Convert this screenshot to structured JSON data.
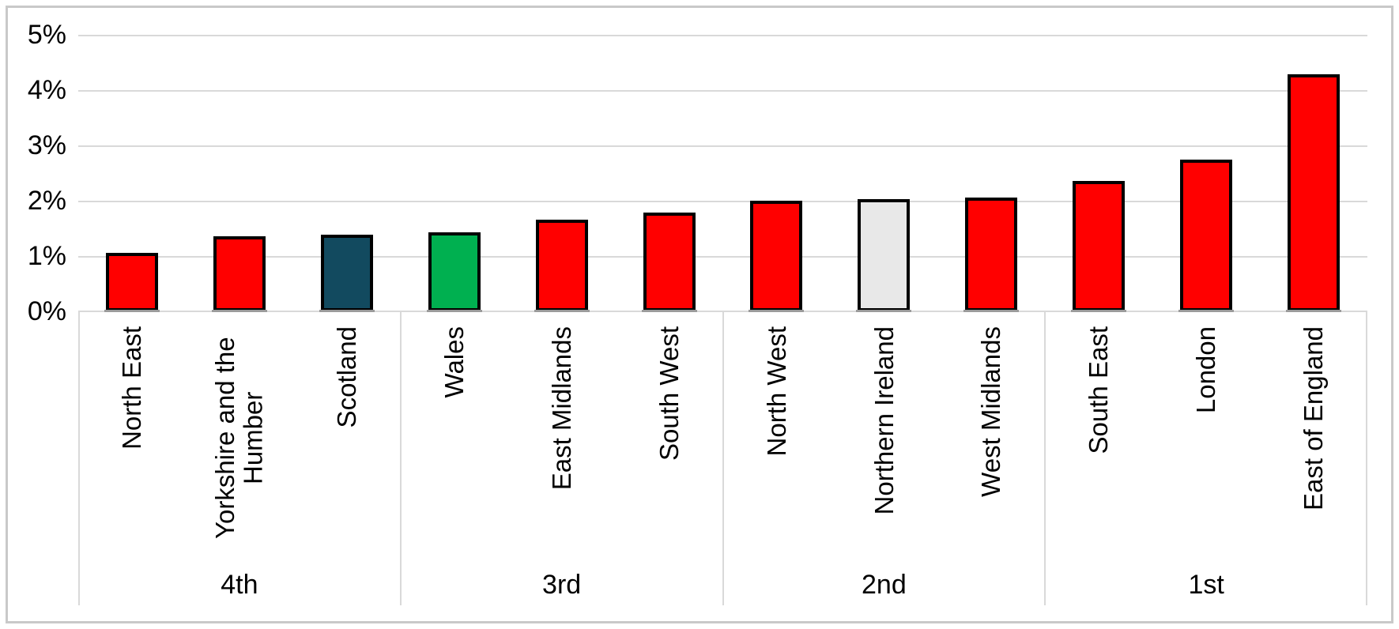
{
  "chart_data": {
    "type": "bar",
    "title": "",
    "xlabel": "",
    "ylabel": "",
    "ylim": [
      0,
      5
    ],
    "ytick_labels": [
      "5%",
      "4%",
      "3%",
      "2%",
      "1%",
      "0%"
    ],
    "grid": true,
    "legend": false,
    "x_axis_levels": [
      "region",
      "quartile"
    ],
    "groups": [
      {
        "label": "4th",
        "bars": [
          {
            "region": "North East",
            "value_pct": 1.05,
            "color": "#FF0000"
          },
          {
            "region": "Yorkshire and the Humber",
            "value_pct": 1.36,
            "color": "#FF0000"
          },
          {
            "region": "Scotland",
            "value_pct": 1.38,
            "color": "#124A5F"
          }
        ]
      },
      {
        "label": "3rd",
        "bars": [
          {
            "region": "Wales",
            "value_pct": 1.43,
            "color": "#00B050"
          },
          {
            "region": "East Midlands",
            "value_pct": 1.65,
            "color": "#FF0000"
          },
          {
            "region": "South West",
            "value_pct": 1.79,
            "color": "#FF0000"
          }
        ]
      },
      {
        "label": "2nd",
        "bars": [
          {
            "region": "North West",
            "value_pct": 2.0,
            "color": "#FF0000"
          },
          {
            "region": "Northern Ireland",
            "value_pct": 2.03,
            "color": "#E8E8E8"
          },
          {
            "region": "West Midlands",
            "value_pct": 2.05,
            "color": "#FF0000"
          }
        ]
      },
      {
        "label": "1st",
        "bars": [
          {
            "region": "South East",
            "value_pct": 2.36,
            "color": "#FF0000"
          },
          {
            "region": "London",
            "value_pct": 2.74,
            "color": "#FF0000"
          },
          {
            "region": "East of England",
            "value_pct": 4.29,
            "color": "#FF0000"
          }
        ]
      }
    ],
    "colors": {
      "default_bar": "#FF0000",
      "scotland_bar": "#124A5F",
      "wales_bar": "#00B050",
      "northern_ireland_bar": "#E8E8E8",
      "bar_border": "#000000",
      "bar_shadow": "#9B9B9B",
      "gridline": "#D9D9D9",
      "axis_line": "#D9D9D9",
      "frame_border": "#C9C9C9",
      "text": "#000000",
      "background": "#FFFFFF"
    }
  }
}
